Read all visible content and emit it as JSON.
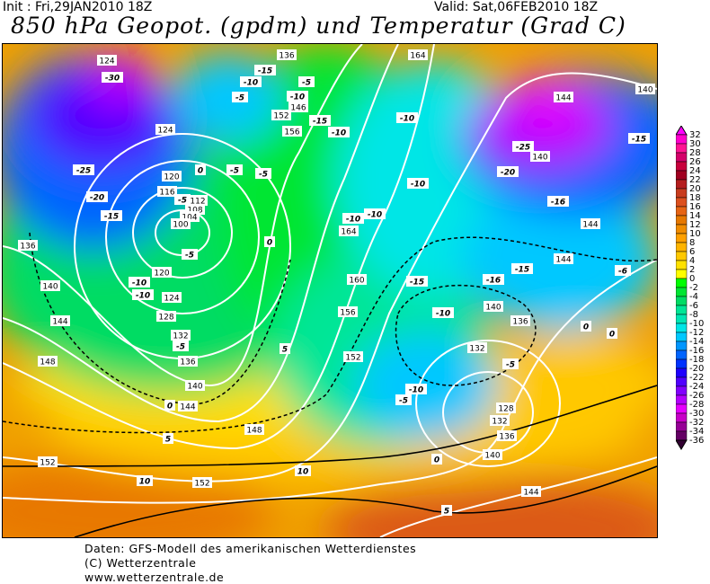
{
  "header": {
    "init": "Init : Fri,29JAN2010 18Z",
    "valid": "Valid: Sat,06FEB2010 18Z",
    "title": "850 hPa Geopot. (gpdm) und Temperatur (Grad C)"
  },
  "footer": {
    "line1": "Daten: GFS-Modell des amerikanischen Wetterdienstes",
    "line2": "(C) Wetterzentrale",
    "line3": "www.wetterzentrale.de"
  },
  "colorbar": {
    "labels": [
      "32",
      "30",
      "28",
      "26",
      "24",
      "22",
      "20",
      "18",
      "16",
      "14",
      "12",
      "10",
      "8",
      "6",
      "4",
      "2",
      "0",
      "-2",
      "-4",
      "-6",
      "-8",
      "-10",
      "-12",
      "-14",
      "-16",
      "-18",
      "-20",
      "-22",
      "-24",
      "-26",
      "-28",
      "-30",
      "-32",
      "-34",
      "-36"
    ],
    "colors": [
      "#ff00ff",
      "#ff00cc",
      "#ff1493",
      "#d4006a",
      "#c8003c",
      "#a00020",
      "#b41e1e",
      "#c83c1e",
      "#dc501e",
      "#e66414",
      "#e67800",
      "#f08c00",
      "#ffa000",
      "#ffb400",
      "#ffc800",
      "#ffe100",
      "#ffff00",
      "#00ff00",
      "#00e632",
      "#00dc64",
      "#00e696",
      "#00e6b4",
      "#00e6e6",
      "#00c8ff",
      "#0096ff",
      "#0064ff",
      "#0032ff",
      "#1e00ff",
      "#5000ff",
      "#8200ff",
      "#b400ff",
      "#e600ff",
      "#c800c8",
      "#960096",
      "#640064",
      "#320032"
    ]
  },
  "map": {
    "geopotential_labels": [
      "124",
      "136",
      "164",
      "144",
      "140",
      "124",
      "152",
      "146",
      "156",
      "140",
      "120",
      "116",
      "112",
      "108",
      "104",
      "100",
      "164",
      "144",
      "136",
      "144",
      "120",
      "160",
      "140",
      "124",
      "128",
      "156",
      "140",
      "136",
      "144",
      "132",
      "132",
      "136",
      "152",
      "148",
      "140",
      "144",
      "128",
      "148",
      "136",
      "132",
      "140",
      "152",
      "152",
      "144"
    ],
    "temperature_labels": [
      "-30",
      "-15",
      "-10",
      "-5",
      "-5",
      "-10",
      "-15",
      "-10",
      "-10",
      "-25",
      "-20",
      "-15",
      "-25",
      "-20",
      "-15",
      "0",
      "-5",
      "-5",
      "-5",
      "-10",
      "-16",
      "-10",
      "-10",
      "0",
      "-5",
      "-15",
      "-16",
      "-15",
      "-10",
      "-10",
      "-6",
      "-10",
      "0",
      "0",
      "-5",
      "5",
      "-5",
      "-10",
      "-5",
      "0",
      "5",
      "10",
      "10",
      "0",
      "5"
    ]
  }
}
